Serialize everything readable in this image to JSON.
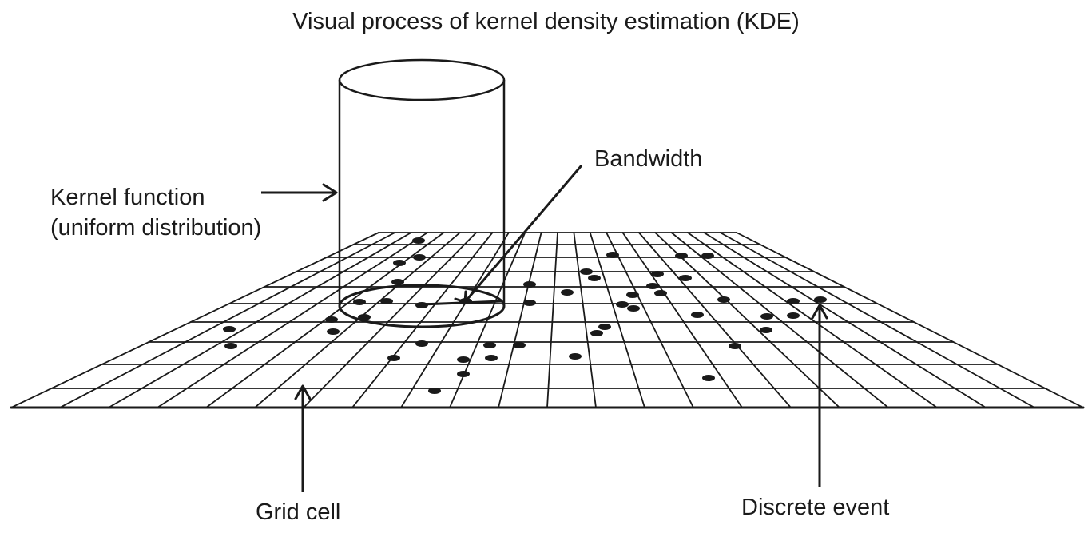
{
  "title": "Visual process of kernel density estimation (KDE)",
  "labels": {
    "bandwidth": "Bandwidth",
    "kernel_line1": "Kernel function",
    "kernel_line2": "(uniform distribution)",
    "grid_cell": "Grid cell",
    "discrete_event": "Discrete event"
  },
  "colors": {
    "ink": "#1a1a1a",
    "background": "#ffffff"
  }
}
